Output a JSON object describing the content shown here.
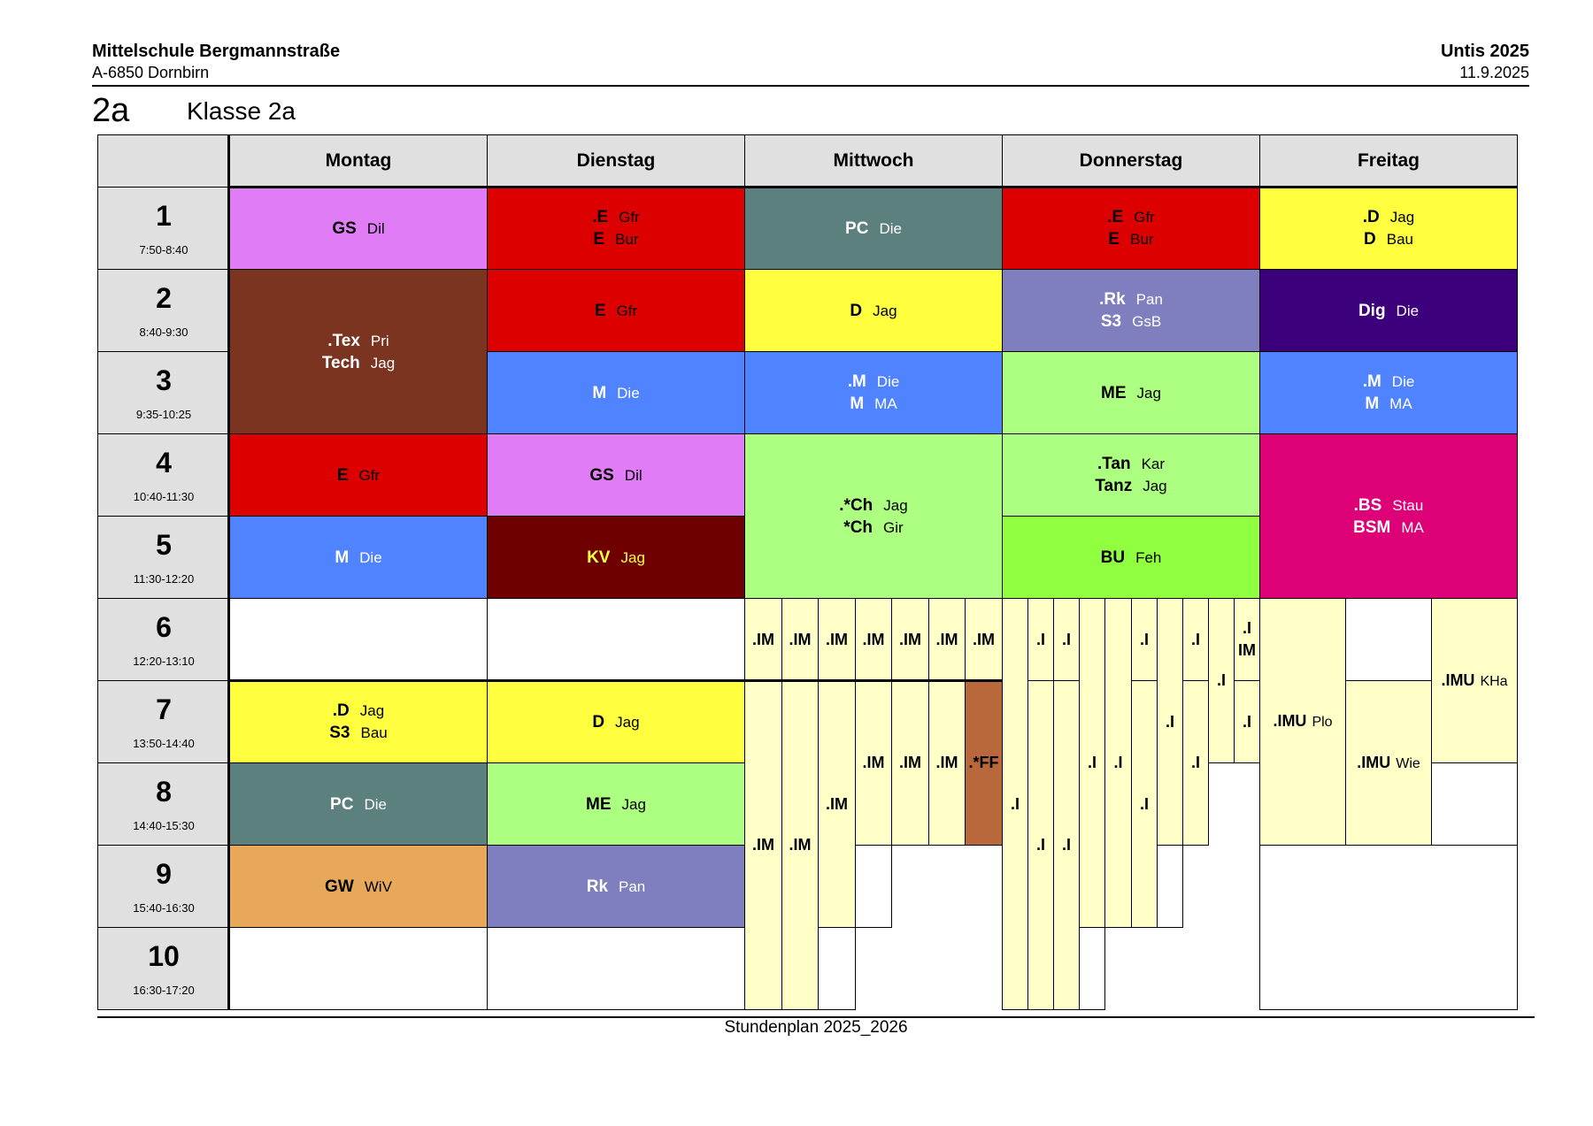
{
  "header": {
    "school": "Mittelschule Bergmannstraße",
    "address": "A-6850 Dornbirn",
    "app": "Untis 2025",
    "date": "11.9.2025"
  },
  "class": {
    "short": "2a",
    "name": "Klasse 2a"
  },
  "footer": "Stundenplan 2025_2026",
  "days": [
    "Montag",
    "Dienstag",
    "Mittwoch",
    "Donnerstag",
    "Freitag"
  ],
  "periods": [
    {
      "num": "1",
      "time": "7:50-8:40"
    },
    {
      "num": "2",
      "time": "8:40-9:30"
    },
    {
      "num": "3",
      "time": "9:35-10:25"
    },
    {
      "num": "4",
      "time": "10:40-11:30"
    },
    {
      "num": "5",
      "time": "11:30-12:20"
    },
    {
      "num": "6",
      "time": "12:20-13:10"
    },
    {
      "num": "7",
      "time": "13:50-14:40"
    },
    {
      "num": "8",
      "time": "14:40-15:30"
    },
    {
      "num": "9",
      "time": "15:40-16:30"
    },
    {
      "num": "10",
      "time": "16:30-17:20"
    }
  ],
  "colors": {
    "pink": "#e07cf5",
    "red": "#dc0000",
    "slate": "#5b807d",
    "yellow": "#ffff40",
    "brown": "#7b3420",
    "purple": "#7f7fbf",
    "indigo": "#3c007c",
    "blue": "#4f83ff",
    "lightgreen": "#acff80",
    "magenta": "#dd0077",
    "lime": "#90ff40",
    "maroon": "#6e0000",
    "orange": "#e8a85a",
    "cream": "#ffffc8",
    "copper": "#b8683a",
    "white": "#ffffff"
  },
  "lessons": [
    {
      "day": 0,
      "col": 0,
      "cols": 1,
      "start": 1,
      "span": 1,
      "color": "pink",
      "text": "#000",
      "lines": [
        {
          "s": "GS",
          "t": "Dil"
        }
      ]
    },
    {
      "day": 0,
      "col": 0,
      "cols": 1,
      "start": 2,
      "span": 2,
      "color": "brown",
      "text": "#fff",
      "lines": [
        {
          "s": ".Tex",
          "t": "Pri"
        },
        {
          "s": "Tech",
          "t": "Jag"
        }
      ]
    },
    {
      "day": 0,
      "col": 0,
      "cols": 1,
      "start": 4,
      "span": 1,
      "color": "red",
      "text": "#000",
      "lines": [
        {
          "s": "E",
          "t": "Gfr"
        }
      ]
    },
    {
      "day": 0,
      "col": 0,
      "cols": 1,
      "start": 5,
      "span": 1,
      "color": "blue",
      "text": "#fff",
      "lines": [
        {
          "s": "M",
          "t": "Die"
        }
      ]
    },
    {
      "day": 0,
      "col": 0,
      "cols": 1,
      "start": 6,
      "span": 1,
      "color": "white",
      "text": "#000",
      "lines": []
    },
    {
      "day": 0,
      "col": 0,
      "cols": 1,
      "start": 7,
      "span": 1,
      "color": "yellow",
      "text": "#000",
      "lines": [
        {
          "s": ".D",
          "t": "Jag"
        },
        {
          "s": "S3",
          "t": "Bau"
        }
      ]
    },
    {
      "day": 0,
      "col": 0,
      "cols": 1,
      "start": 8,
      "span": 1,
      "color": "slate",
      "text": "#fff",
      "lines": [
        {
          "s": "PC",
          "t": "Die"
        }
      ]
    },
    {
      "day": 0,
      "col": 0,
      "cols": 1,
      "start": 9,
      "span": 1,
      "color": "orange",
      "text": "#000",
      "lines": [
        {
          "s": "GW",
          "t": "WiV"
        }
      ]
    },
    {
      "day": 0,
      "col": 0,
      "cols": 1,
      "start": 10,
      "span": 1,
      "color": "white",
      "text": "#000",
      "lines": []
    },
    {
      "day": 1,
      "col": 0,
      "cols": 1,
      "start": 1,
      "span": 1,
      "color": "red",
      "text": "#000",
      "lines": [
        {
          "s": ".E",
          "t": "Gfr"
        },
        {
          "s": "E",
          "t": "Bur"
        }
      ]
    },
    {
      "day": 1,
      "col": 0,
      "cols": 1,
      "start": 2,
      "span": 1,
      "color": "red",
      "text": "#000",
      "lines": [
        {
          "s": "E",
          "t": "Gfr"
        }
      ]
    },
    {
      "day": 1,
      "col": 0,
      "cols": 1,
      "start": 3,
      "span": 1,
      "color": "blue",
      "text": "#fff",
      "lines": [
        {
          "s": "M",
          "t": "Die"
        }
      ]
    },
    {
      "day": 1,
      "col": 0,
      "cols": 1,
      "start": 4,
      "span": 1,
      "color": "pink",
      "text": "#000",
      "lines": [
        {
          "s": "GS",
          "t": "Dil"
        }
      ]
    },
    {
      "day": 1,
      "col": 0,
      "cols": 1,
      "start": 5,
      "span": 1,
      "color": "maroon",
      "text": "#ffff40",
      "lines": [
        {
          "s": "KV",
          "t": "Jag"
        }
      ]
    },
    {
      "day": 1,
      "col": 0,
      "cols": 1,
      "start": 6,
      "span": 1,
      "color": "white",
      "text": "#000",
      "lines": []
    },
    {
      "day": 1,
      "col": 0,
      "cols": 1,
      "start": 7,
      "span": 1,
      "color": "yellow",
      "text": "#000",
      "lines": [
        {
          "s": "D",
          "t": "Jag"
        }
      ]
    },
    {
      "day": 1,
      "col": 0,
      "cols": 1,
      "start": 8,
      "span": 1,
      "color": "lightgreen",
      "text": "#000",
      "lines": [
        {
          "s": "ME",
          "t": "Jag"
        }
      ]
    },
    {
      "day": 1,
      "col": 0,
      "cols": 1,
      "start": 9,
      "span": 1,
      "color": "purple",
      "text": "#fff",
      "lines": [
        {
          "s": "Rk",
          "t": "Pan"
        }
      ]
    },
    {
      "day": 1,
      "col": 0,
      "cols": 1,
      "start": 10,
      "span": 1,
      "color": "white",
      "text": "#000",
      "lines": []
    },
    {
      "day": 2,
      "col": 0,
      "cols": 1,
      "start": 1,
      "span": 1,
      "color": "slate",
      "text": "#fff",
      "lines": [
        {
          "s": "PC",
          "t": "Die"
        }
      ]
    },
    {
      "day": 2,
      "col": 0,
      "cols": 1,
      "start": 2,
      "span": 1,
      "color": "yellow",
      "text": "#000",
      "lines": [
        {
          "s": "D",
          "t": "Jag"
        }
      ]
    },
    {
      "day": 2,
      "col": 0,
      "cols": 1,
      "start": 3,
      "span": 1,
      "color": "blue",
      "text": "#fff",
      "lines": [
        {
          "s": ".M",
          "t": "Die"
        },
        {
          "s": "M",
          "t": "MA"
        }
      ]
    },
    {
      "day": 2,
      "col": 0,
      "cols": 1,
      "start": 4,
      "span": 2,
      "color": "lightgreen",
      "text": "#000",
      "lines": [
        {
          "s": ".*Ch",
          "t": "Jag"
        },
        {
          "s": "*Ch",
          "t": "Gir"
        }
      ]
    },
    {
      "day": 3,
      "col": 0,
      "cols": 1,
      "start": 1,
      "span": 1,
      "color": "red",
      "text": "#000",
      "lines": [
        {
          "s": ".E",
          "t": "Gfr"
        },
        {
          "s": "E",
          "t": "Bur"
        }
      ]
    },
    {
      "day": 3,
      "col": 0,
      "cols": 1,
      "start": 2,
      "span": 1,
      "color": "purple",
      "text": "#fff",
      "lines": [
        {
          "s": ".Rk",
          "t": "Pan"
        },
        {
          "s": "S3",
          "t": "GsB"
        }
      ]
    },
    {
      "day": 3,
      "col": 0,
      "cols": 1,
      "start": 3,
      "span": 1,
      "color": "lightgreen",
      "text": "#000",
      "lines": [
        {
          "s": "ME",
          "t": "Jag"
        }
      ]
    },
    {
      "day": 3,
      "col": 0,
      "cols": 1,
      "start": 4,
      "span": 1,
      "color": "lightgreen",
      "text": "#000",
      "lines": [
        {
          "s": ".Tan",
          "t": "Kar"
        },
        {
          "s": "Tanz",
          "t": "Jag"
        }
      ]
    },
    {
      "day": 3,
      "col": 0,
      "cols": 1,
      "start": 5,
      "span": 1,
      "color": "lime",
      "text": "#000",
      "lines": [
        {
          "s": "BU",
          "t": "Feh"
        }
      ]
    },
    {
      "day": 4,
      "col": 0,
      "cols": 1,
      "start": 1,
      "span": 1,
      "color": "yellow",
      "text": "#000",
      "lines": [
        {
          "s": ".D",
          "t": "Jag"
        },
        {
          "s": "D",
          "t": "Bau"
        }
      ]
    },
    {
      "day": 4,
      "col": 0,
      "cols": 1,
      "start": 2,
      "span": 1,
      "color": "indigo",
      "text": "#fff",
      "lines": [
        {
          "s": "Dig",
          "t": "Die"
        }
      ]
    },
    {
      "day": 4,
      "col": 0,
      "cols": 1,
      "start": 3,
      "span": 1,
      "color": "blue",
      "text": "#fff",
      "lines": [
        {
          "s": ".M",
          "t": "Die"
        },
        {
          "s": "M",
          "t": "MA"
        }
      ]
    },
    {
      "day": 4,
      "col": 0,
      "cols": 1,
      "start": 4,
      "span": 2,
      "color": "magenta",
      "text": "#fff",
      "lines": [
        {
          "s": ".BS",
          "t": "Stau"
        },
        {
          "s": "BSM",
          "t": "MA"
        }
      ]
    },
    {
      "day": 4,
      "col": 0,
      "cols": 1,
      "start": 9,
      "span": 2,
      "color": "white",
      "text": "#000",
      "lines": []
    },
    {
      "day": 2,
      "col": 0,
      "cols": 7,
      "start": 6,
      "span": 1,
      "color": "cream",
      "text": "#000",
      "lines": [
        {
          "s": ".IM",
          "t": ""
        }
      ]
    },
    {
      "day": 2,
      "col": 1,
      "cols": 7,
      "start": 6,
      "span": 1,
      "color": "cream",
      "text": "#000",
      "lines": [
        {
          "s": ".IM",
          "t": ""
        }
      ]
    },
    {
      "day": 2,
      "col": 2,
      "cols": 7,
      "start": 6,
      "span": 1,
      "color": "cream",
      "text": "#000",
      "lines": [
        {
          "s": ".IM",
          "t": ""
        }
      ]
    },
    {
      "day": 2,
      "col": 3,
      "cols": 7,
      "start": 6,
      "span": 1,
      "color": "cream",
      "text": "#000",
      "lines": [
        {
          "s": ".IM",
          "t": ""
        }
      ]
    },
    {
      "day": 2,
      "col": 4,
      "cols": 7,
      "start": 6,
      "span": 1,
      "color": "cream",
      "text": "#000",
      "lines": [
        {
          "s": ".IM",
          "t": ""
        }
      ]
    },
    {
      "day": 2,
      "col": 5,
      "cols": 7,
      "start": 6,
      "span": 1,
      "color": "cream",
      "text": "#000",
      "lines": [
        {
          "s": ".IM",
          "t": ""
        }
      ]
    },
    {
      "day": 2,
      "col": 6,
      "cols": 7,
      "start": 6,
      "span": 1,
      "color": "cream",
      "text": "#000",
      "lines": [
        {
          "s": ".IM",
          "t": ""
        }
      ]
    },
    {
      "day": 2,
      "col": 0,
      "cols": 7,
      "start": 7,
      "span": 4,
      "color": "cream",
      "text": "#000",
      "lines": [
        {
          "s": ".IM",
          "t": ""
        }
      ]
    },
    {
      "day": 2,
      "col": 1,
      "cols": 7,
      "start": 7,
      "span": 4,
      "color": "cream",
      "text": "#000",
      "lines": [
        {
          "s": ".IM",
          "t": ""
        }
      ]
    },
    {
      "day": 2,
      "col": 2,
      "cols": 7,
      "start": 7,
      "span": 3,
      "color": "cream",
      "text": "#000",
      "lines": [
        {
          "s": ".IM",
          "t": ""
        }
      ]
    },
    {
      "day": 2,
      "col": 3,
      "cols": 7,
      "start": 7,
      "span": 2,
      "color": "cream",
      "text": "#000",
      "lines": [
        {
          "s": ".IM",
          "t": ""
        }
      ]
    },
    {
      "day": 2,
      "col": 4,
      "cols": 7,
      "start": 7,
      "span": 2,
      "color": "cream",
      "text": "#000",
      "lines": [
        {
          "s": ".IM",
          "t": ""
        }
      ]
    },
    {
      "day": 2,
      "col": 5,
      "cols": 7,
      "start": 7,
      "span": 2,
      "color": "cream",
      "text": "#000",
      "lines": [
        {
          "s": ".IM",
          "t": ""
        }
      ]
    },
    {
      "day": 2,
      "col": 6,
      "cols": 7,
      "start": 7,
      "span": 2,
      "color": "copper",
      "text": "#000",
      "lines": [
        {
          "s": ".*FF",
          "t": ""
        }
      ]
    },
    {
      "day": 2,
      "col": 3,
      "cols": 7,
      "start": 9,
      "span": 1,
      "color": "white",
      "text": "#000",
      "lines": []
    },
    {
      "day": 2,
      "col": 2,
      "cols": 7,
      "start": 10,
      "span": 1,
      "color": "white",
      "text": "#000",
      "lines": []
    },
    {
      "day": 3,
      "col": 0,
      "cols": 10,
      "start": 6,
      "span": 5,
      "color": "cream",
      "text": "#000",
      "lines": [
        {
          "s": ".I",
          "t": ""
        }
      ]
    },
    {
      "day": 3,
      "col": 1,
      "cols": 10,
      "start": 6,
      "span": 1,
      "color": "cream",
      "text": "#000",
      "lines": [
        {
          "s": ".I",
          "t": ""
        }
      ]
    },
    {
      "day": 3,
      "col": 2,
      "cols": 10,
      "start": 6,
      "span": 1,
      "color": "cream",
      "text": "#000",
      "lines": [
        {
          "s": ".I",
          "t": ""
        }
      ]
    },
    {
      "day": 3,
      "col": 3,
      "cols": 10,
      "start": 6,
      "span": 4,
      "color": "cream",
      "text": "#000",
      "lines": [
        {
          "s": ".I",
          "t": ""
        }
      ]
    },
    {
      "day": 3,
      "col": 4,
      "cols": 10,
      "start": 6,
      "span": 4,
      "color": "cream",
      "text": "#000",
      "lines": [
        {
          "s": ".I",
          "t": ""
        }
      ]
    },
    {
      "day": 3,
      "col": 5,
      "cols": 10,
      "start": 6,
      "span": 1,
      "color": "cream",
      "text": "#000",
      "lines": [
        {
          "s": ".I",
          "t": ""
        }
      ]
    },
    {
      "day": 3,
      "col": 6,
      "cols": 10,
      "start": 6,
      "span": 3,
      "color": "cream",
      "text": "#000",
      "lines": [
        {
          "s": ".I",
          "t": ""
        }
      ]
    },
    {
      "day": 3,
      "col": 7,
      "cols": 10,
      "start": 6,
      "span": 1,
      "color": "cream",
      "text": "#000",
      "lines": [
        {
          "s": ".I",
          "t": ""
        }
      ]
    },
    {
      "day": 3,
      "col": 8,
      "cols": 10,
      "start": 6,
      "span": 2,
      "color": "cream",
      "text": "#000",
      "lines": [
        {
          "s": ".I",
          "t": ""
        }
      ]
    },
    {
      "day": 3,
      "col": 9,
      "cols": 10,
      "start": 6,
      "span": 1,
      "color": "cream",
      "text": "#000",
      "lines": [
        {
          "s": ".I",
          "t": ""
        },
        {
          "s": "IM",
          "t": ""
        }
      ]
    },
    {
      "day": 3,
      "col": 1,
      "cols": 10,
      "start": 7,
      "span": 4,
      "color": "cream",
      "text": "#000",
      "lines": [
        {
          "s": ".I",
          "t": ""
        }
      ]
    },
    {
      "day": 3,
      "col": 2,
      "cols": 10,
      "start": 7,
      "span": 4,
      "color": "cream",
      "text": "#000",
      "lines": [
        {
          "s": ".I",
          "t": ""
        }
      ]
    },
    {
      "day": 3,
      "col": 5,
      "cols": 10,
      "start": 7,
      "span": 3,
      "color": "cream",
      "text": "#000",
      "lines": [
        {
          "s": ".I",
          "t": ""
        }
      ]
    },
    {
      "day": 3,
      "col": 7,
      "cols": 10,
      "start": 7,
      "span": 2,
      "color": "cream",
      "text": "#000",
      "lines": [
        {
          "s": ".I",
          "t": ""
        }
      ]
    },
    {
      "day": 3,
      "col": 9,
      "cols": 10,
      "start": 7,
      "span": 1,
      "color": "cream",
      "text": "#000",
      "lines": [
        {
          "s": ".I",
          "t": ""
        }
      ]
    },
    {
      "day": 3,
      "col": 6,
      "cols": 10,
      "start": 9,
      "span": 1,
      "color": "white",
      "text": "#000",
      "lines": []
    },
    {
      "day": 3,
      "col": 3,
      "cols": 10,
      "start": 10,
      "span": 1,
      "color": "white",
      "text": "#000",
      "lines": []
    },
    {
      "day": 4,
      "col": 0,
      "cols": 3,
      "start": 6,
      "span": 3,
      "color": "cream",
      "text": "#000",
      "lines": [
        {
          "s": ".IMU",
          "t": "Plo"
        }
      ]
    },
    {
      "day": 4,
      "col": 1,
      "cols": 3,
      "start": 6,
      "span": 1,
      "color": "white",
      "text": "#000",
      "lines": []
    },
    {
      "day": 4,
      "col": 2,
      "cols": 3,
      "start": 6,
      "span": 2,
      "color": "cream",
      "text": "#000",
      "lines": [
        {
          "s": ".IMU",
          "t": "KHa"
        }
      ]
    },
    {
      "day": 4,
      "col": 1,
      "cols": 3,
      "start": 7,
      "span": 2,
      "color": "cream",
      "text": "#000",
      "lines": [
        {
          "s": ".IMU",
          "t": "Wie"
        }
      ]
    },
    {
      "day": 4,
      "col": 2,
      "cols": 3,
      "start": 8,
      "span": 1,
      "color": "white",
      "text": "#000",
      "lines": []
    }
  ]
}
